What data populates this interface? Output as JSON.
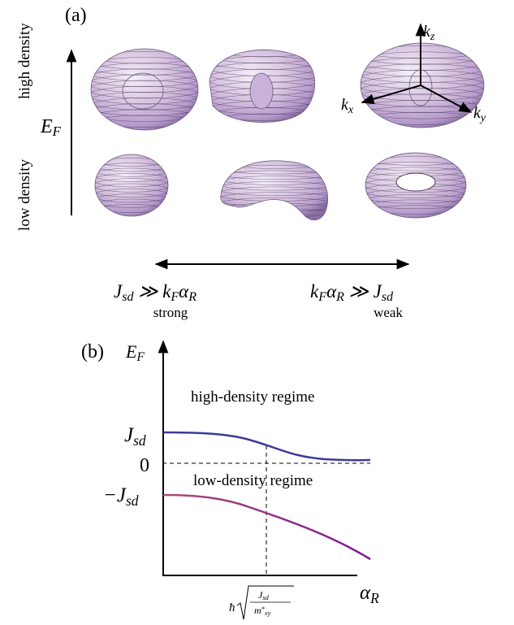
{
  "panel_a": {
    "label": "(a)",
    "high_label": "high density",
    "low_label": "low density",
    "energy_axis": [
      {
        "t": "E"
      },
      {
        "sub": "F"
      }
    ],
    "kz": [
      {
        "t": "k"
      },
      {
        "sub": "z"
      }
    ],
    "kx": [
      {
        "t": "k"
      },
      {
        "sub": "x"
      }
    ],
    "ky": [
      {
        "t": "k"
      },
      {
        "sub": "y"
      }
    ],
    "left_condition": [
      {
        "t": "J"
      },
      {
        "sub": "sd"
      },
      {
        "t": " ≫ k"
      },
      {
        "sub": "F"
      },
      {
        "t": "α"
      },
      {
        "sub": "R"
      }
    ],
    "left_word": "strong",
    "right_condition": [
      {
        "t": "k"
      },
      {
        "sub": "F"
      },
      {
        "t": "α"
      },
      {
        "sub": "R"
      },
      {
        "t": " ≫ J"
      },
      {
        "sub": "sd"
      }
    ],
    "right_word": "weak"
  },
  "panel_b": {
    "label": "(b)",
    "y_axis": [
      {
        "t": "E"
      },
      {
        "sub": "F"
      }
    ],
    "x_axis": [
      {
        "t": "α"
      },
      {
        "sub": "R"
      }
    ],
    "high_regime": "high-density regime",
    "low_regime": "low-density regime",
    "y_tick_top": [
      {
        "t": "J"
      },
      {
        "sub": "sd"
      }
    ],
    "y_tick_zero": "0",
    "y_tick_bottom": [
      {
        "t": "−J"
      },
      {
        "sub": "sd"
      }
    ],
    "x_tick_prefix": "ħ",
    "x_tick_numerator": [
      {
        "t": "J"
      },
      {
        "sub": "sd"
      }
    ],
    "x_tick_denominator": [
      {
        "t": "m"
      },
      {
        "sup": "*"
      },
      {
        "sub": "xy"
      }
    ]
  }
}
